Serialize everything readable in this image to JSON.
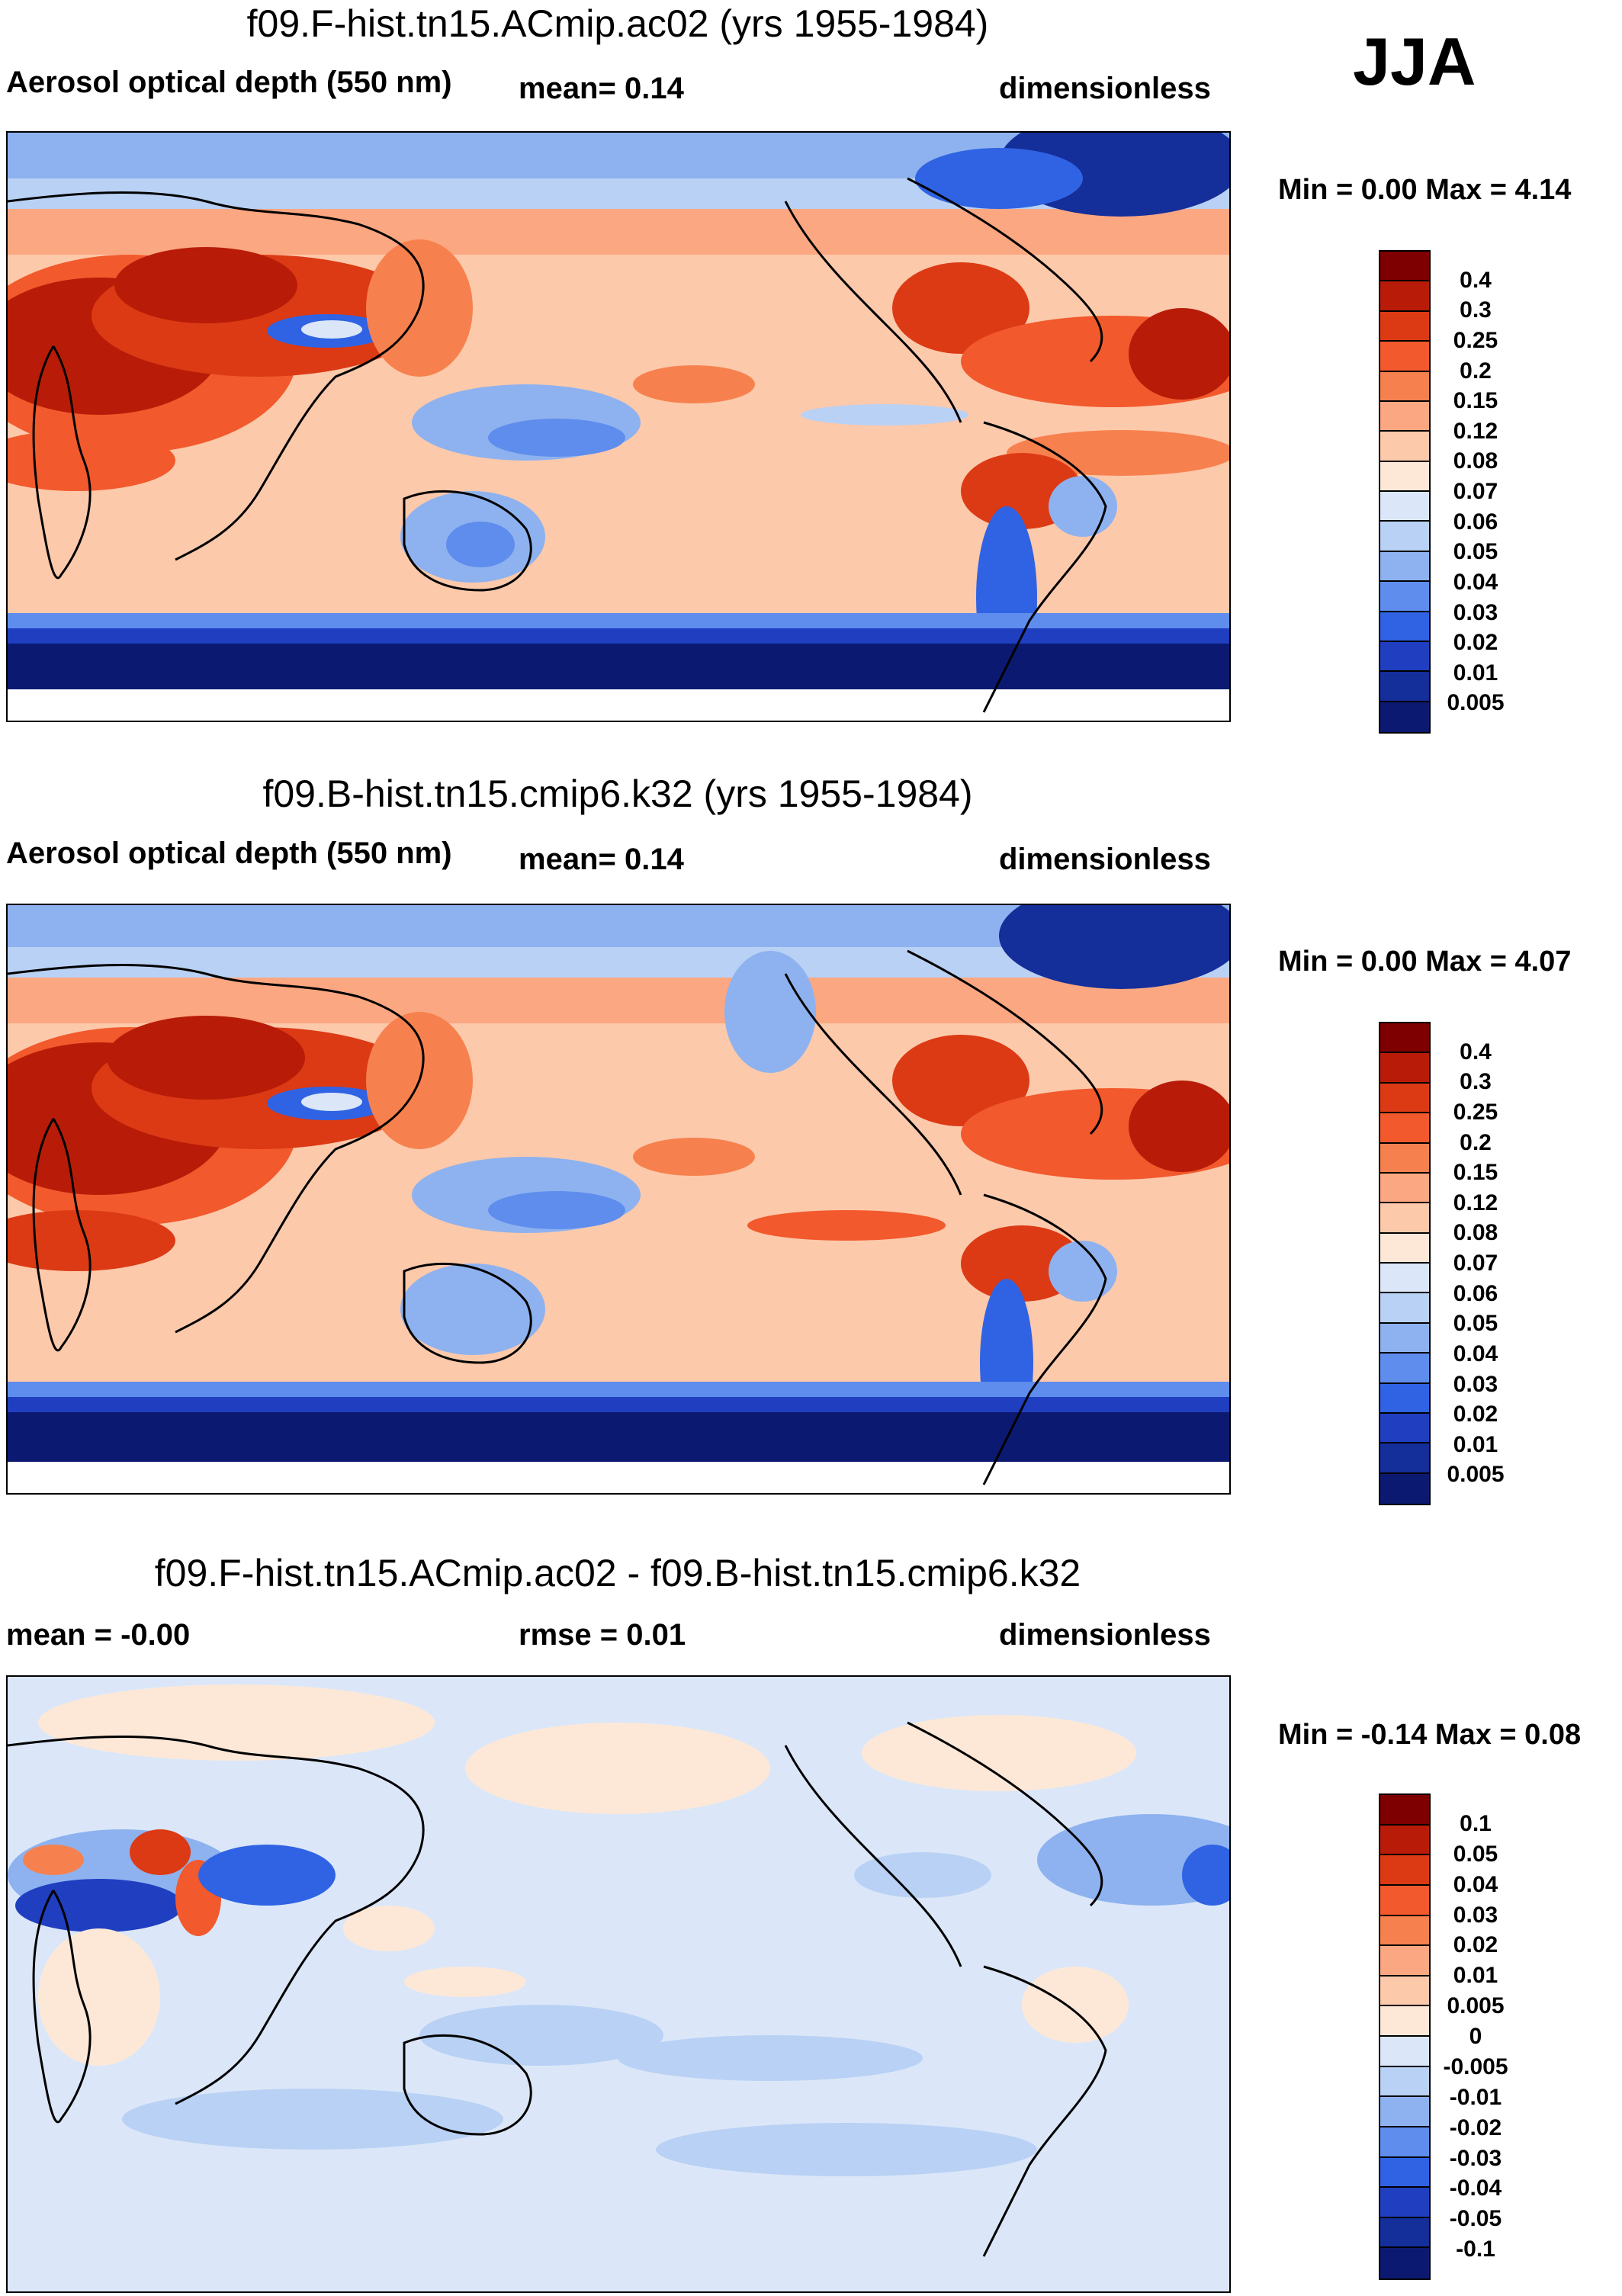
{
  "season": "JJA",
  "panels": [
    {
      "title": "f09.F-hist.tn15.ACmip.ac02 (yrs 1955-1984)",
      "left_label": "Aerosol optical depth (550 nm)",
      "center_label": "mean=  0.14",
      "right_label": "dimensionless",
      "minmax": "Min =   0.00 Max =   4.14",
      "type": "absolute"
    },
    {
      "title": "f09.B-hist.tn15.cmip6.k32 (yrs 1955-1984)",
      "left_label": "Aerosol optical depth (550 nm)",
      "center_label": "mean=  0.14",
      "right_label": "dimensionless",
      "minmax": "Min =   0.00 Max =   4.07",
      "type": "absolute"
    },
    {
      "title": "f09.F-hist.tn15.ACmip.ac02 - f09.B-hist.tn15.cmip6.k32",
      "left_label": "mean =  -0.00",
      "center_label": "rmse =   0.01",
      "right_label": "dimensionless",
      "minmax": "Min =  -0.14 Max =   0.08",
      "type": "difference"
    }
  ],
  "colorbars": {
    "absolute": {
      "labels": [
        "0.4",
        "0.3",
        "0.25",
        "0.2",
        "0.15",
        "0.12",
        "0.08",
        "0.07",
        "0.06",
        "0.05",
        "0.04",
        "0.03",
        "0.02",
        "0.01",
        "0.005"
      ],
      "colors": [
        "#7f0000",
        "#b81c08",
        "#dc3a14",
        "#f2592c",
        "#f7814e",
        "#fba781",
        "#fcc9ab",
        "#fde8d8",
        "#dbe7f8",
        "#b9d1f4",
        "#8eb2ef",
        "#5f8ded",
        "#2f63e3",
        "#1f3fc0",
        "#142e9a",
        "#0b1a70"
      ]
    },
    "difference": {
      "labels": [
        "0.1",
        "0.05",
        "0.04",
        "0.03",
        "0.02",
        "0.01",
        "0.005",
        "0",
        "-0.005",
        "-0.01",
        "-0.02",
        "-0.03",
        "-0.04",
        "-0.05",
        "-0.1"
      ],
      "colors": [
        "#7f0000",
        "#b81c08",
        "#dc3a14",
        "#f2592c",
        "#f7814e",
        "#fba781",
        "#fcc9ab",
        "#fde8d8",
        "#dbe7f8",
        "#b9d1f4",
        "#8eb2ef",
        "#5f8ded",
        "#2f63e3",
        "#1f3fc0",
        "#142e9a",
        "#0b1a70"
      ]
    }
  }
}
